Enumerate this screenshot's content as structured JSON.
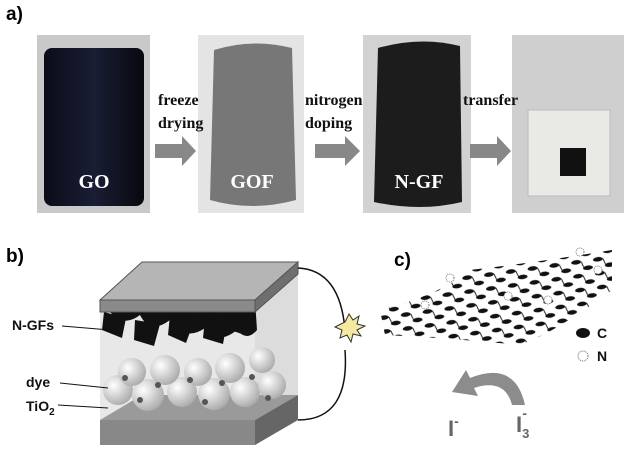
{
  "panel_a": {
    "label": "a)",
    "photos": [
      {
        "label": "GO"
      },
      {
        "label": "GOF"
      },
      {
        "label": "N-GF"
      }
    ],
    "steps": [
      {
        "lines": [
          "freeze",
          "drying"
        ]
      },
      {
        "lines": [
          "nitrogen",
          "doping"
        ]
      },
      {
        "lines": [
          "transfer"
        ]
      }
    ]
  },
  "panel_b": {
    "label": "b)",
    "callouts": [
      "N-GFs",
      "dye"
    ],
    "tio2": {
      "text": "TiO",
      "subscript": "2"
    }
  },
  "panel_c": {
    "label": "c)",
    "legend": [
      "C",
      "N"
    ],
    "iodide": {
      "text": "I",
      "superscript": "-"
    },
    "triiodide": {
      "text": "I",
      "subscript": "3",
      "superscript": "-"
    }
  }
}
